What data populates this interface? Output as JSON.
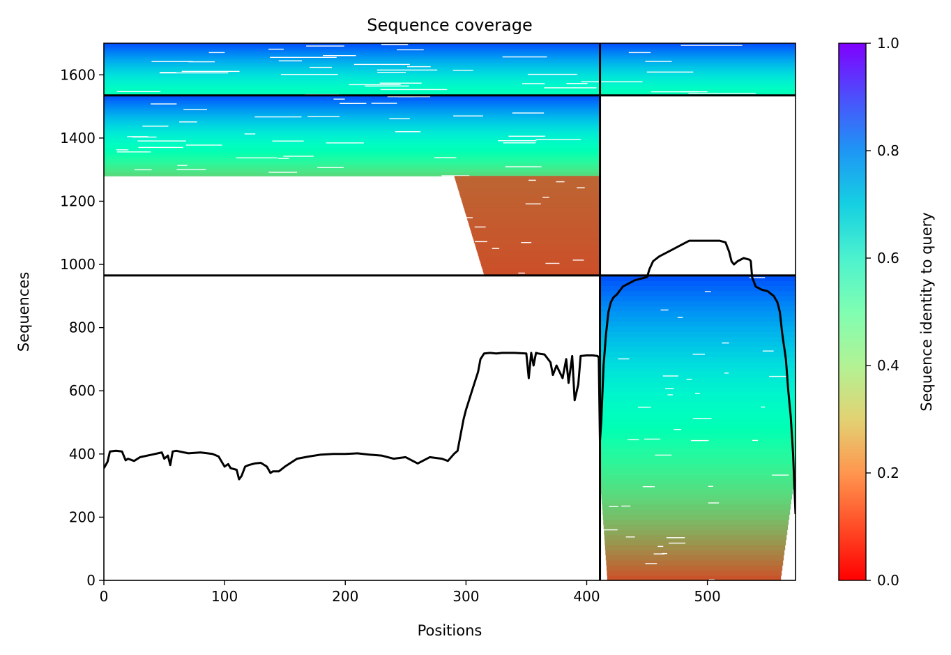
{
  "chart_data": {
    "type": "heatmap",
    "title": "Sequence coverage",
    "xlabel": "Positions",
    "ylabel": "Sequences",
    "xlim": [
      0,
      573
    ],
    "ylim": [
      0,
      1700
    ],
    "xticks": [
      0,
      100,
      200,
      300,
      400,
      500
    ],
    "yticks": [
      0,
      200,
      400,
      600,
      800,
      1000,
      1200,
      1400,
      1600
    ],
    "colorbar": {
      "label": "Sequence identity to query",
      "colormap": "rainbow_r",
      "range": [
        0,
        1
      ],
      "ticks": [
        0.0,
        0.2,
        0.4,
        0.6,
        0.8,
        1.0
      ],
      "tick_labels": [
        "0.0",
        "0.2",
        "0.4",
        "0.6",
        "0.8",
        "1.0"
      ]
    },
    "chain_boundary_x": [
      411
    ],
    "block_boundary_y": [
      965,
      1535
    ],
    "blocks": [
      {
        "name": "paired",
        "x": [
          0,
          573
        ],
        "y": [
          1535,
          1700
        ],
        "identity_range": [
          0.5,
          0.9
        ]
      },
      {
        "name": "chain-1-unpaired-high",
        "x": [
          0,
          411
        ],
        "y": [
          1280,
          1535
        ],
        "identity_range": [
          0.32,
          0.9
        ]
      },
      {
        "name": "chain-1-unpaired-low",
        "x": [
          280,
          411
        ],
        "y": [
          965,
          1280
        ],
        "identity_range": [
          0.1,
          0.13
        ]
      },
      {
        "name": "chain-2-unpaired",
        "x": [
          411,
          573
        ],
        "y": [
          0,
          965
        ],
        "identity_range": [
          0.1,
          0.9
        ]
      }
    ],
    "coverage_line": {
      "color": "#000000",
      "x": [
        0,
        3,
        5,
        10,
        15,
        18,
        20,
        25,
        30,
        40,
        48,
        50,
        53,
        55,
        57,
        60,
        70,
        80,
        90,
        95,
        100,
        103,
        105,
        110,
        112,
        114,
        117,
        120,
        125,
        130,
        135,
        138,
        140,
        145,
        150,
        160,
        170,
        180,
        190,
        200,
        210,
        220,
        230,
        240,
        250,
        260,
        270,
        280,
        285,
        290,
        293,
        295,
        298,
        300,
        305,
        310,
        312,
        315,
        320,
        325,
        330,
        340,
        350,
        352,
        354,
        356,
        358,
        360,
        365,
        370,
        372,
        375,
        380,
        383,
        385,
        388,
        390,
        393,
        395,
        400,
        405,
        409,
        410,
        411,
        412,
        414,
        416,
        418,
        420,
        422,
        425,
        430,
        435,
        440,
        445,
        450,
        452,
        455,
        460,
        470,
        480,
        485,
        490,
        500,
        510,
        515,
        518,
        520,
        522,
        525,
        530,
        535,
        536,
        537,
        540,
        545,
        550,
        555,
        558,
        560,
        562,
        565,
        567,
        569,
        571,
        572,
        573
      ],
      "y": [
        355,
        375,
        408,
        410,
        408,
        380,
        385,
        378,
        390,
        398,
        405,
        385,
        395,
        365,
        408,
        410,
        402,
        405,
        400,
        392,
        360,
        368,
        355,
        350,
        320,
        330,
        360,
        365,
        370,
        372,
        360,
        340,
        345,
        345,
        360,
        385,
        392,
        398,
        400,
        400,
        402,
        398,
        395,
        385,
        390,
        370,
        390,
        385,
        378,
        400,
        410,
        450,
        510,
        540,
        600,
        660,
        700,
        718,
        720,
        718,
        720,
        720,
        718,
        640,
        720,
        680,
        720,
        718,
        715,
        690,
        650,
        680,
        640,
        700,
        625,
        710,
        570,
        620,
        710,
        712,
        712,
        710,
        705,
        440,
        500,
        680,
        780,
        850,
        880,
        895,
        905,
        930,
        940,
        950,
        955,
        960,
        985,
        1010,
        1025,
        1045,
        1065,
        1075,
        1075,
        1075,
        1075,
        1070,
        1040,
        1010,
        1000,
        1010,
        1020,
        1015,
        1010,
        960,
        930,
        920,
        915,
        900,
        880,
        850,
        780,
        700,
        600,
        520,
        400,
        300,
        210
      ]
    }
  }
}
